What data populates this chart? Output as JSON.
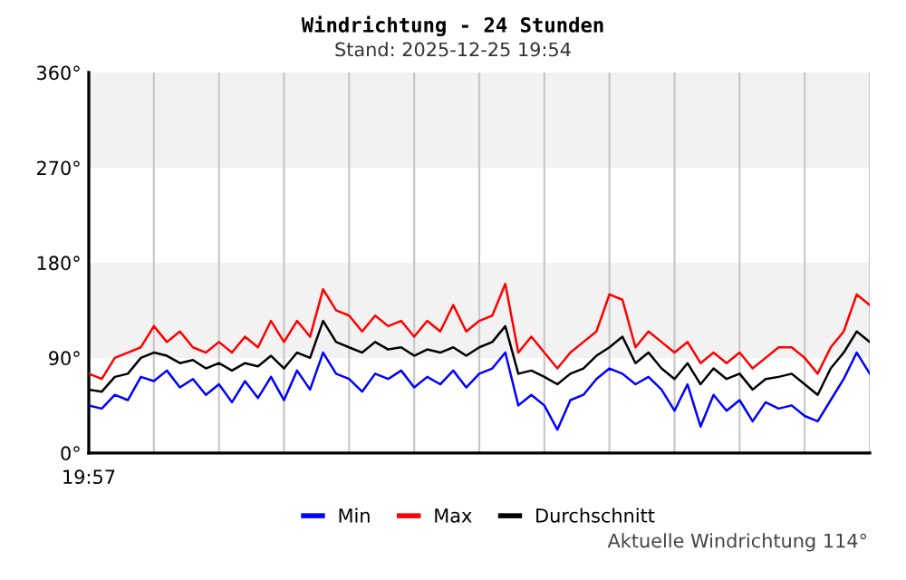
{
  "chart_data": {
    "type": "line",
    "title": "Windrichtung - 24 Stunden",
    "subtitle": "Stand: 2025-12-25 19:54",
    "categories": [
      null,
      null,
      null,
      null,
      null,
      null,
      null,
      null,
      null,
      null,
      null,
      null,
      null,
      null,
      null,
      null,
      null,
      null,
      null,
      null,
      null,
      null,
      null,
      null,
      null,
      null,
      null,
      null,
      null,
      null,
      null,
      null,
      null,
      null,
      null,
      null,
      null,
      null,
      null,
      null,
      null,
      null,
      null,
      null,
      null,
      null,
      null,
      null,
      null,
      null,
      null,
      null,
      null,
      null,
      null,
      null,
      null,
      null,
      null,
      null,
      null
    ],
    "series": [
      {
        "name": "Min",
        "color": "#0000ff",
        "values": [
          45,
          42,
          55,
          50,
          72,
          68,
          78,
          62,
          70,
          55,
          65,
          48,
          68,
          52,
          72,
          50,
          78,
          60,
          95,
          75,
          70,
          58,
          75,
          70,
          78,
          62,
          72,
          65,
          78,
          62,
          75,
          80,
          95,
          45,
          55,
          45,
          22,
          50,
          55,
          70,
          80,
          75,
          65,
          72,
          60,
          40,
          65,
          25,
          55,
          40,
          50,
          30,
          48,
          42,
          45,
          35,
          30,
          50,
          70,
          95,
          75
        ]
      },
      {
        "name": "Max",
        "color": "#ff0000",
        "values": [
          75,
          70,
          90,
          95,
          100,
          120,
          105,
          115,
          100,
          95,
          105,
          95,
          110,
          100,
          125,
          105,
          125,
          110,
          155,
          135,
          130,
          115,
          130,
          120,
          125,
          110,
          125,
          115,
          140,
          115,
          125,
          130,
          160,
          95,
          110,
          95,
          80,
          95,
          105,
          115,
          150,
          145,
          100,
          115,
          105,
          95,
          105,
          85,
          95,
          85,
          95,
          80,
          90,
          100,
          100,
          90,
          75,
          100,
          115,
          150,
          140
        ]
      },
      {
        "name": "Durchschnitt",
        "color": "#000000",
        "values": [
          60,
          58,
          72,
          75,
          90,
          95,
          92,
          85,
          88,
          80,
          85,
          78,
          85,
          82,
          92,
          80,
          95,
          90,
          125,
          105,
          100,
          95,
          105,
          98,
          100,
          92,
          98,
          95,
          100,
          92,
          100,
          105,
          120,
          75,
          78,
          72,
          65,
          75,
          80,
          92,
          100,
          110,
          85,
          95,
          80,
          70,
          85,
          65,
          80,
          70,
          75,
          60,
          70,
          72,
          75,
          65,
          55,
          80,
          95,
          115,
          105
        ]
      }
    ],
    "ylim": [
      0,
      360
    ],
    "yticks": [
      {
        "value": 0,
        "label": "0°"
      },
      {
        "value": 90,
        "label": "90°"
      },
      {
        "value": 180,
        "label": "180°"
      },
      {
        "value": 270,
        "label": "270°"
      },
      {
        "value": 360,
        "label": "360°"
      }
    ],
    "bands": [
      {
        "axis": "y",
        "from": 90,
        "to": 180,
        "color": "#f2f2f2"
      },
      {
        "axis": "y",
        "from": 270,
        "to": 360,
        "color": "#f2f2f2"
      }
    ],
    "grid": "x",
    "legend": "bottom",
    "line_style": "solid",
    "marker": "none",
    "annotations": [
      "19:57",
      "Aktuelle Windrichtung 114°"
    ]
  }
}
